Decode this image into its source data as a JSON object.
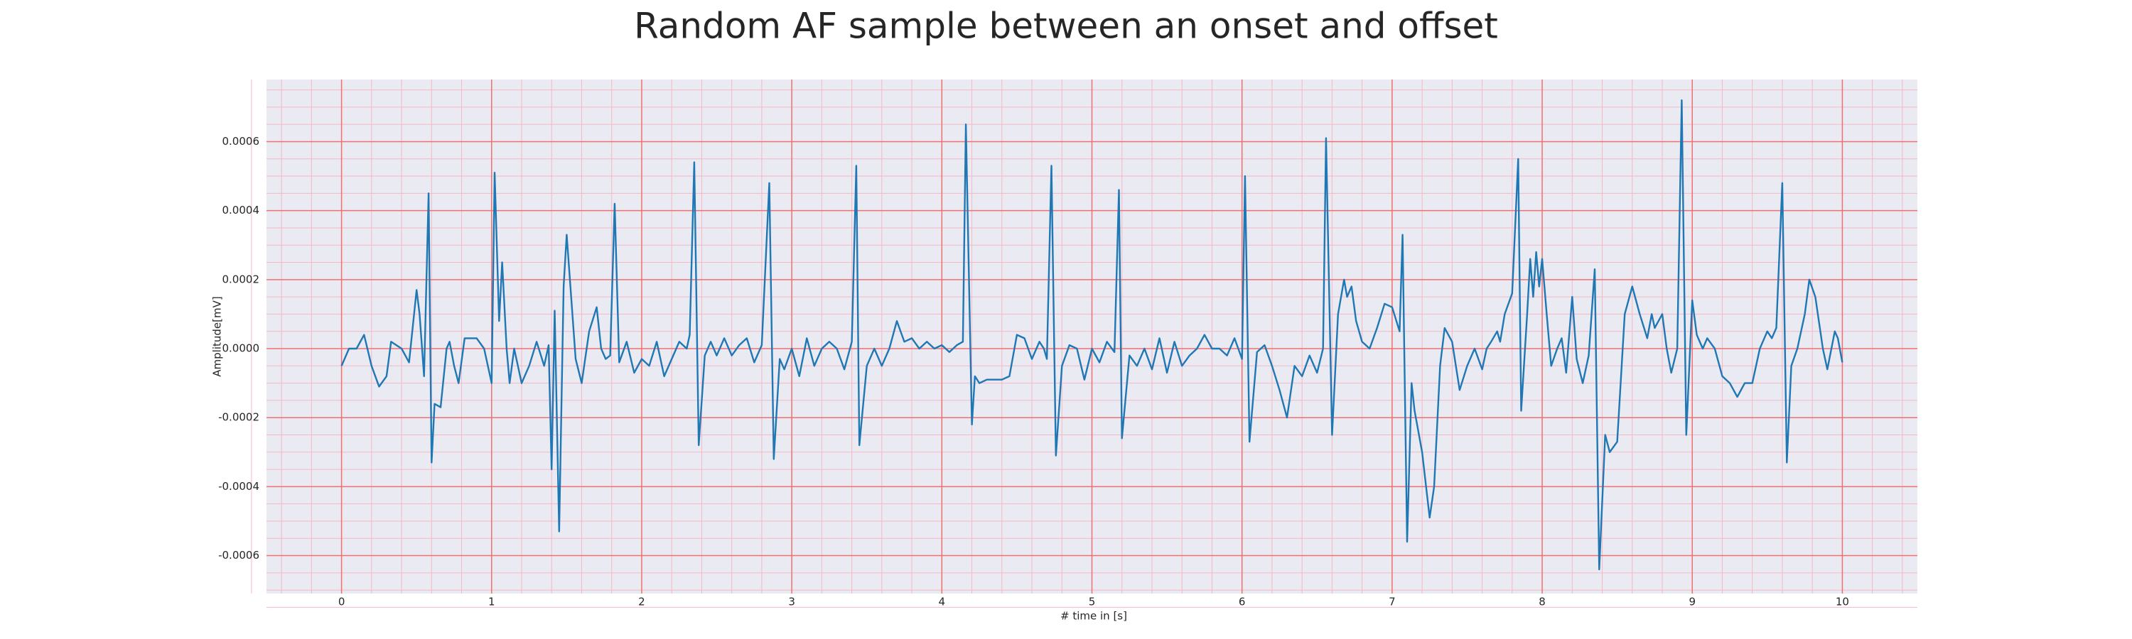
{
  "chart_data": {
    "type": "line",
    "title": "Random AF sample between an onset and offset",
    "xlabel": "# time in [s]",
    "ylabel": "Amplitude[mV]",
    "xlim": [
      -0.5,
      10.5
    ],
    "ylim": [
      -0.00071,
      0.00078
    ],
    "xticks": [
      0,
      1,
      2,
      3,
      4,
      5,
      6,
      7,
      8,
      9,
      10
    ],
    "yticks": [
      -0.0006,
      -0.0004,
      -0.0002,
      {
        "value": 0,
        "label": "0.0000"
      },
      0.0002,
      0.0004,
      0.0006
    ],
    "grid": true,
    "minor_grid": true,
    "series": [
      {
        "color": "#1f77b4",
        "x": [
          0,
          0.05,
          0.1,
          0.15,
          0.2,
          0.25,
          0.3,
          0.33,
          0.4,
          0.45,
          0.5,
          0.52,
          0.55,
          0.58,
          0.6,
          0.62,
          0.66,
          0.7,
          0.72,
          0.75,
          0.78,
          0.82,
          0.9,
          0.95,
          1.0,
          1.02,
          1.05,
          1.07,
          1.1,
          1.12,
          1.15,
          1.2,
          1.25,
          1.3,
          1.35,
          1.38,
          1.4,
          1.42,
          1.45,
          1.48,
          1.5,
          1.53,
          1.56,
          1.6,
          1.65,
          1.7,
          1.73,
          1.76,
          1.79,
          1.82,
          1.85,
          1.9,
          1.95,
          2.0,
          2.05,
          2.1,
          2.15,
          2.2,
          2.25,
          2.3,
          2.32,
          2.35,
          2.38,
          2.42,
          2.46,
          2.5,
          2.55,
          2.6,
          2.65,
          2.7,
          2.75,
          2.8,
          2.85,
          2.88,
          2.92,
          2.95,
          3.0,
          3.05,
          3.1,
          3.15,
          3.2,
          3.25,
          3.3,
          3.35,
          3.4,
          3.43,
          3.45,
          3.5,
          3.55,
          3.6,
          3.65,
          3.7,
          3.75,
          3.8,
          3.85,
          3.9,
          3.95,
          4.0,
          4.05,
          4.1,
          4.14,
          4.16,
          4.2,
          4.22,
          4.25,
          4.3,
          4.4,
          4.45,
          4.5,
          4.55,
          4.6,
          4.65,
          4.68,
          4.7,
          4.73,
          4.76,
          4.8,
          4.85,
          4.9,
          4.95,
          5.0,
          5.05,
          5.1,
          5.15,
          5.18,
          5.2,
          5.25,
          5.3,
          5.35,
          5.4,
          5.45,
          5.5,
          5.55,
          5.6,
          5.65,
          5.7,
          5.75,
          5.8,
          5.85,
          5.9,
          5.95,
          6.0,
          6.02,
          6.05,
          6.1,
          6.15,
          6.2,
          6.25,
          6.3,
          6.35,
          6.4,
          6.45,
          6.5,
          6.54,
          6.56,
          6.6,
          6.64,
          6.68,
          6.7,
          6.73,
          6.76,
          6.8,
          6.85,
          6.9,
          6.95,
          7.0,
          7.05,
          7.07,
          7.1,
          7.13,
          7.15,
          7.2,
          7.25,
          7.28,
          7.32,
          7.35,
          7.4,
          7.45,
          7.5,
          7.55,
          7.6,
          7.63,
          7.66,
          7.7,
          7.72,
          7.75,
          7.8,
          7.84,
          7.86,
          7.9,
          7.92,
          7.94,
          7.96,
          7.98,
          8.0,
          8.03,
          8.06,
          8.1,
          8.13,
          8.16,
          8.2,
          8.23,
          8.27,
          8.31,
          8.35,
          8.38,
          8.42,
          8.45,
          8.5,
          8.55,
          8.6,
          8.65,
          8.7,
          8.73,
          8.75,
          8.8,
          8.83,
          8.86,
          8.9,
          8.93,
          8.96,
          9.0,
          9.03,
          9.07,
          9.1,
          9.15,
          9.2,
          9.25,
          9.3,
          9.35,
          9.4,
          9.45,
          9.5,
          9.53,
          9.56,
          9.6,
          9.63,
          9.66,
          9.7,
          9.75,
          9.78,
          9.82,
          9.87,
          9.9,
          9.95,
          9.97,
          10.0
        ],
        "values": [
          -5e-05,
          0,
          0,
          4e-05,
          -5e-05,
          -0.00011,
          -8e-05,
          2e-05,
          0,
          -4e-05,
          0.00017,
          0.0001,
          -8e-05,
          0.00045,
          -0.00033,
          -0.00016,
          -0.00017,
          0,
          2e-05,
          -5e-05,
          -0.0001,
          3e-05,
          3e-05,
          0,
          -0.0001,
          0.00051,
          8e-05,
          0.00025,
          0,
          -0.0001,
          0,
          -0.0001,
          -5e-05,
          2e-05,
          -5e-05,
          1e-05,
          -0.00035,
          0.00011,
          -0.00053,
          0.00018,
          0.00033,
          0.00015,
          -3e-05,
          -0.0001,
          5e-05,
          0.00012,
          0,
          -3e-05,
          -2e-05,
          0.00042,
          -4e-05,
          2e-05,
          -7e-05,
          -3e-05,
          -5e-05,
          2e-05,
          -8e-05,
          -3e-05,
          2e-05,
          0,
          4e-05,
          0.00054,
          -0.00028,
          -2e-05,
          2e-05,
          -2e-05,
          3e-05,
          -2e-05,
          1e-05,
          3e-05,
          -4e-05,
          1e-05,
          0.00048,
          -0.00032,
          -3e-05,
          -6e-05,
          0,
          -8e-05,
          3e-05,
          -5e-05,
          0,
          2e-05,
          0,
          -6e-05,
          2e-05,
          0.00053,
          -0.00028,
          -5e-05,
          0,
          -5e-05,
          0,
          8e-05,
          2e-05,
          3e-05,
          0,
          2e-05,
          0,
          1e-05,
          -1e-05,
          1e-05,
          2e-05,
          0.00065,
          -0.00022,
          -8e-05,
          -0.0001,
          -9e-05,
          -9e-05,
          -8e-05,
          4e-05,
          3e-05,
          -3e-05,
          2e-05,
          0,
          -3e-05,
          0.00053,
          -0.00031,
          -5e-05,
          1e-05,
          0,
          -9e-05,
          0,
          -4e-05,
          2e-05,
          -1e-05,
          0.00046,
          -0.00026,
          -2e-05,
          -5e-05,
          0,
          -6e-05,
          3e-05,
          -7e-05,
          2e-05,
          -5e-05,
          -2e-05,
          0,
          4e-05,
          0,
          0,
          -2e-05,
          3e-05,
          -3e-05,
          0.0005,
          -0.00027,
          -1e-05,
          1e-05,
          -5e-05,
          -0.00012,
          -0.0002,
          -5e-05,
          -8e-05,
          -2e-05,
          -7e-05,
          0,
          0.00061,
          -0.00025,
          0.0001,
          0.0002,
          0.00015,
          0.00018,
          8e-05,
          2e-05,
          0,
          6e-05,
          0.00013,
          0.00012,
          5e-05,
          0.00033,
          -0.00056,
          -0.0001,
          -0.00018,
          -0.0003,
          -0.00049,
          -0.0004,
          -5e-05,
          6e-05,
          2e-05,
          -0.00012,
          -5e-05,
          0,
          -6e-05,
          0,
          2e-05,
          5e-05,
          2e-05,
          0.0001,
          0.00016,
          0.00055,
          -0.00018,
          0.0001,
          0.00026,
          0.00015,
          0.00028,
          0.00018,
          0.00026,
          0.0001,
          -5e-05,
          0,
          3e-05,
          -7e-05,
          0.00015,
          -3e-05,
          -0.0001,
          -2e-05,
          0.00023,
          -0.00064,
          -0.00025,
          -0.0003,
          -0.00027,
          0.0001,
          0.00018,
          0.0001,
          3e-05,
          0.0001,
          6e-05,
          0.0001,
          0,
          -7e-05,
          0,
          0.00072,
          -0.00025,
          0.00014,
          4e-05,
          0,
          3e-05,
          0,
          -8e-05,
          -0.0001,
          -0.00014,
          -0.0001,
          -0.0001,
          0,
          5e-05,
          3e-05,
          6e-05,
          0.00048,
          -0.00033,
          -5e-05,
          0,
          0.0001,
          0.0002,
          0.00015,
          0,
          -6e-05,
          5e-05,
          3e-05,
          -4e-05
        ]
      }
    ]
  }
}
